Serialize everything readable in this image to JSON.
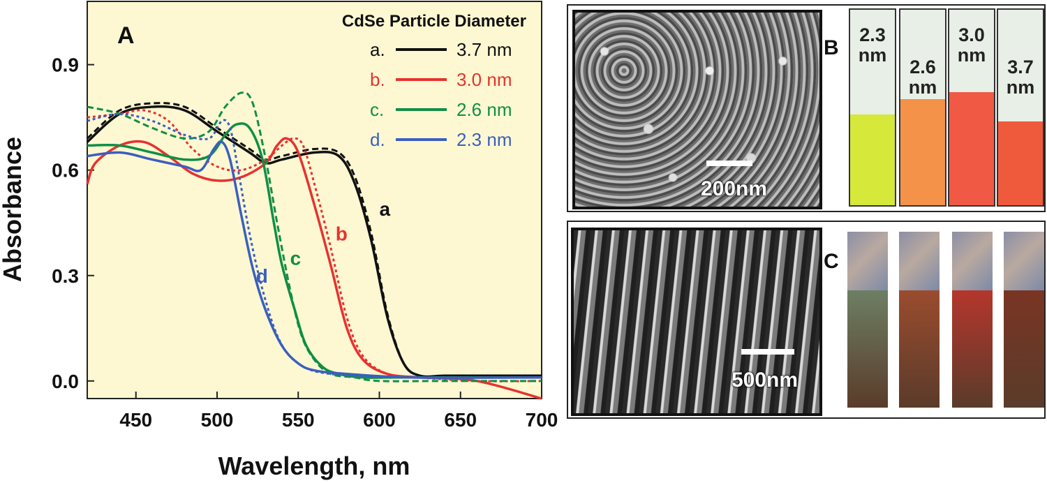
{
  "chart_data": {
    "type": "line",
    "panel_label": "A",
    "xlabel": "Wavelength, nm",
    "ylabel": "Absorbance",
    "xlim": [
      420,
      700
    ],
    "ylim": [
      -0.05,
      1.08
    ],
    "xticks": [
      450,
      500,
      550,
      600,
      650,
      700
    ],
    "yticks": [
      0.0,
      0.3,
      0.6,
      0.9
    ],
    "xtick_labels": [
      "450",
      "500",
      "550",
      "600",
      "650",
      "700"
    ],
    "ytick_labels": [
      "0.0",
      "0.3",
      "0.6",
      "0.9"
    ],
    "background": "#fdf8d2",
    "legend": {
      "title": "CdSe Particle Diameter",
      "placement": "top-right",
      "entries": [
        {
          "key": "a.",
          "label": "3.7 nm",
          "color": "#111111"
        },
        {
          "key": "b.",
          "label": "3.0 nm",
          "color": "#e8312f"
        },
        {
          "key": "c.",
          "label": "2.6 nm",
          "color": "#0f8f45"
        },
        {
          "key": "d.",
          "label": "2.3 nm",
          "color": "#3a5fbf"
        }
      ]
    },
    "series": [
      {
        "id": "a",
        "color": "#111111",
        "style": "solid",
        "x": [
          420,
          440,
          460,
          480,
          500,
          520,
          530,
          540,
          560,
          575,
          585,
          595,
          605,
          615,
          625,
          640,
          660,
          700
        ],
        "y": [
          0.68,
          0.76,
          0.78,
          0.77,
          0.71,
          0.65,
          0.62,
          0.63,
          0.65,
          0.64,
          0.56,
          0.4,
          0.18,
          0.05,
          0.015,
          0.015,
          0.015,
          0.015
        ]
      },
      {
        "id": "a",
        "color": "#111111",
        "style": "dashed",
        "x": [
          420,
          440,
          460,
          480,
          500,
          520,
          530,
          540,
          560,
          575,
          585,
          595,
          605,
          615,
          625,
          640,
          660,
          700
        ],
        "y": [
          0.69,
          0.77,
          0.79,
          0.78,
          0.72,
          0.66,
          0.63,
          0.64,
          0.66,
          0.65,
          0.58,
          0.42,
          0.19,
          0.05,
          0.015,
          0.01,
          0.01,
          0.01
        ]
      },
      {
        "id": "b",
        "color": "#e8312f",
        "style": "solid",
        "x": [
          420,
          425,
          440,
          455,
          470,
          485,
          500,
          515,
          530,
          537,
          543,
          550,
          560,
          570,
          580,
          590,
          605,
          625,
          660,
          700
        ],
        "y": [
          0.56,
          0.62,
          0.67,
          0.68,
          0.64,
          0.59,
          0.57,
          0.58,
          0.62,
          0.67,
          0.69,
          0.65,
          0.5,
          0.33,
          0.15,
          0.06,
          0.02,
          0.01,
          0.0,
          -0.05
        ]
      },
      {
        "id": "b",
        "color": "#e8312f",
        "style": "dotted",
        "x": [
          420,
          440,
          455,
          470,
          485,
          500,
          515,
          530,
          540,
          547,
          553,
          560,
          570,
          580,
          590,
          605,
          625,
          660,
          700
        ],
        "y": [
          0.75,
          0.76,
          0.77,
          0.74,
          0.66,
          0.61,
          0.6,
          0.63,
          0.67,
          0.69,
          0.67,
          0.56,
          0.38,
          0.18,
          0.07,
          0.02,
          0.01,
          0.0,
          0.0
        ]
      },
      {
        "id": "c",
        "color": "#0f8f45",
        "style": "solid",
        "x": [
          420,
          440,
          460,
          480,
          495,
          505,
          512,
          520,
          528,
          535,
          540,
          548,
          555,
          565,
          575,
          590,
          610,
          650,
          700
        ],
        "y": [
          0.67,
          0.67,
          0.65,
          0.63,
          0.64,
          0.7,
          0.73,
          0.72,
          0.63,
          0.45,
          0.33,
          0.2,
          0.1,
          0.04,
          0.02,
          0.01,
          0.01,
          0.01,
          0.01
        ]
      },
      {
        "id": "c",
        "color": "#0f8f45",
        "style": "dashed",
        "x": [
          420,
          440,
          460,
          480,
          495,
          505,
          515,
          522,
          530,
          537,
          545,
          552,
          560,
          570,
          585,
          600,
          640,
          700
        ],
        "y": [
          0.78,
          0.76,
          0.72,
          0.69,
          0.71,
          0.78,
          0.82,
          0.79,
          0.63,
          0.45,
          0.26,
          0.13,
          0.06,
          0.02,
          0.01,
          0.0,
          0.0,
          0.0
        ]
      },
      {
        "id": "d",
        "color": "#3a5fbf",
        "style": "solid",
        "x": [
          420,
          440,
          460,
          480,
          490,
          498,
          503,
          508,
          515,
          522,
          530,
          540,
          550,
          560,
          580,
          620,
          700
        ],
        "y": [
          0.64,
          0.65,
          0.63,
          0.61,
          0.6,
          0.66,
          0.68,
          0.63,
          0.47,
          0.32,
          0.2,
          0.1,
          0.05,
          0.03,
          0.02,
          0.01,
          0.01
        ]
      },
      {
        "id": "d",
        "color": "#3a5fbf",
        "style": "dotted",
        "x": [
          420,
          440,
          460,
          480,
          495,
          503,
          508,
          513,
          520,
          528,
          538,
          550,
          570,
          620,
          700
        ],
        "y": [
          0.74,
          0.76,
          0.74,
          0.7,
          0.69,
          0.74,
          0.72,
          0.6,
          0.42,
          0.26,
          0.12,
          0.05,
          0.02,
          0.01,
          0.01
        ]
      }
    ],
    "curve_labels": [
      {
        "text": "a",
        "x": 600,
        "y": 0.47,
        "color": "#111111"
      },
      {
        "text": "b",
        "x": 573,
        "y": 0.4,
        "color": "#e8312f"
      },
      {
        "text": "c",
        "x": 545,
        "y": 0.33,
        "color": "#0f8f45"
      },
      {
        "text": "d",
        "x": 524,
        "y": 0.28,
        "color": "#3a5fbf"
      }
    ]
  },
  "panel_b": {
    "letter": "B",
    "scale_label": "200nm",
    "cuvettes": [
      {
        "label": "2.3 nm",
        "line1": "2.3",
        "line2": "nm",
        "color": "#d6e83a"
      },
      {
        "label": "2.6 nm",
        "line1": "2.6",
        "line2": "nm",
        "color": "#f5924a"
      },
      {
        "label": "3.0 nm",
        "line1": "3.0",
        "line2": "nm",
        "color": "#f05a44"
      },
      {
        "label": "3.7 nm",
        "line1": "3.7",
        "line2": "nm",
        "color": "#f05a3c"
      }
    ]
  },
  "panel_c": {
    "letter": "C",
    "scale_label": "500nm",
    "strip_colors": [
      "#6d7f63",
      "#9a4c2e",
      "#b5362c",
      "#7a3524"
    ]
  }
}
